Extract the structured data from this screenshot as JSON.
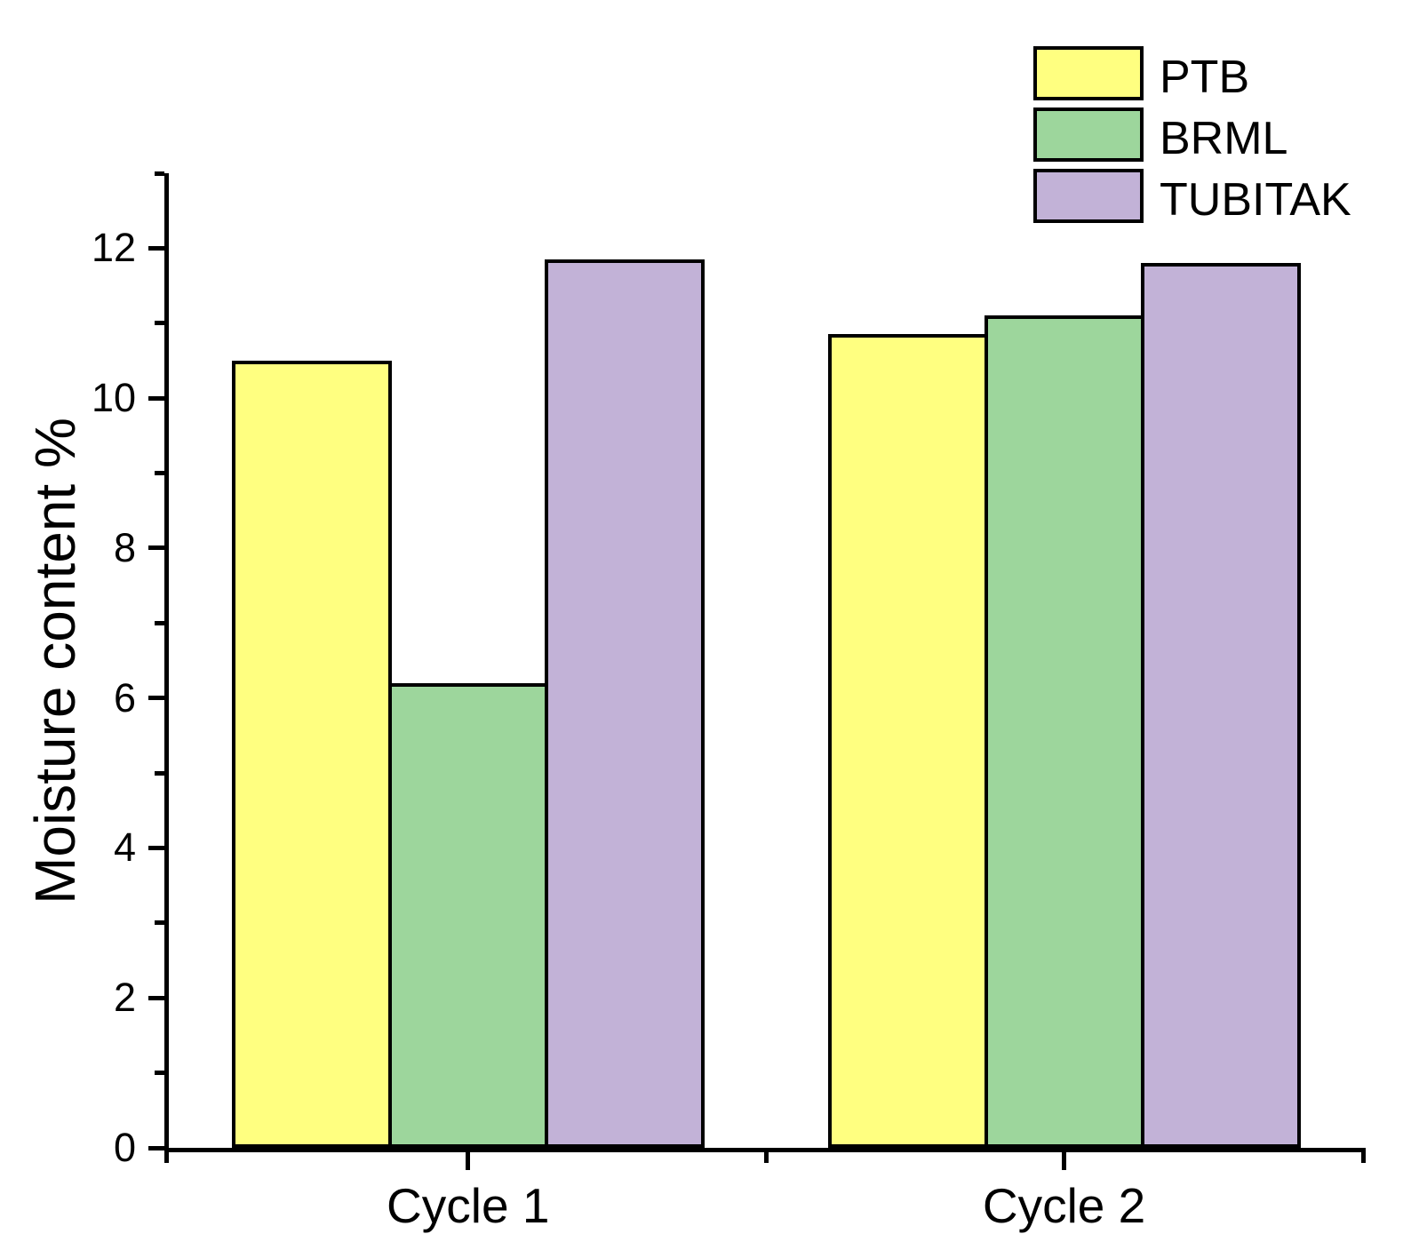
{
  "chart_data": {
    "type": "bar",
    "title": "",
    "categories": [
      "Cycle 1",
      "Cycle 2"
    ],
    "series": [
      {
        "name": "PTB",
        "color": "#FFFF80",
        "values": [
          10.5,
          10.85
        ]
      },
      {
        "name": "BRML",
        "color": "#9DD69C",
        "values": [
          6.2,
          11.1
        ]
      },
      {
        "name": "TUBITAK",
        "color": "#C2B2D7",
        "values": [
          11.85,
          11.8
        ]
      }
    ],
    "xlabel": "",
    "ylabel": "Moisture content %",
    "ylim": [
      0,
      13
    ],
    "y_major_ticks": [
      0,
      2,
      4,
      6,
      8,
      10,
      12
    ],
    "y_minor_step": 1,
    "grid": false,
    "legend_position": "top-right",
    "bar_border_color": "#000000",
    "axis_color": "#000000",
    "background": "#FFFFFF"
  }
}
